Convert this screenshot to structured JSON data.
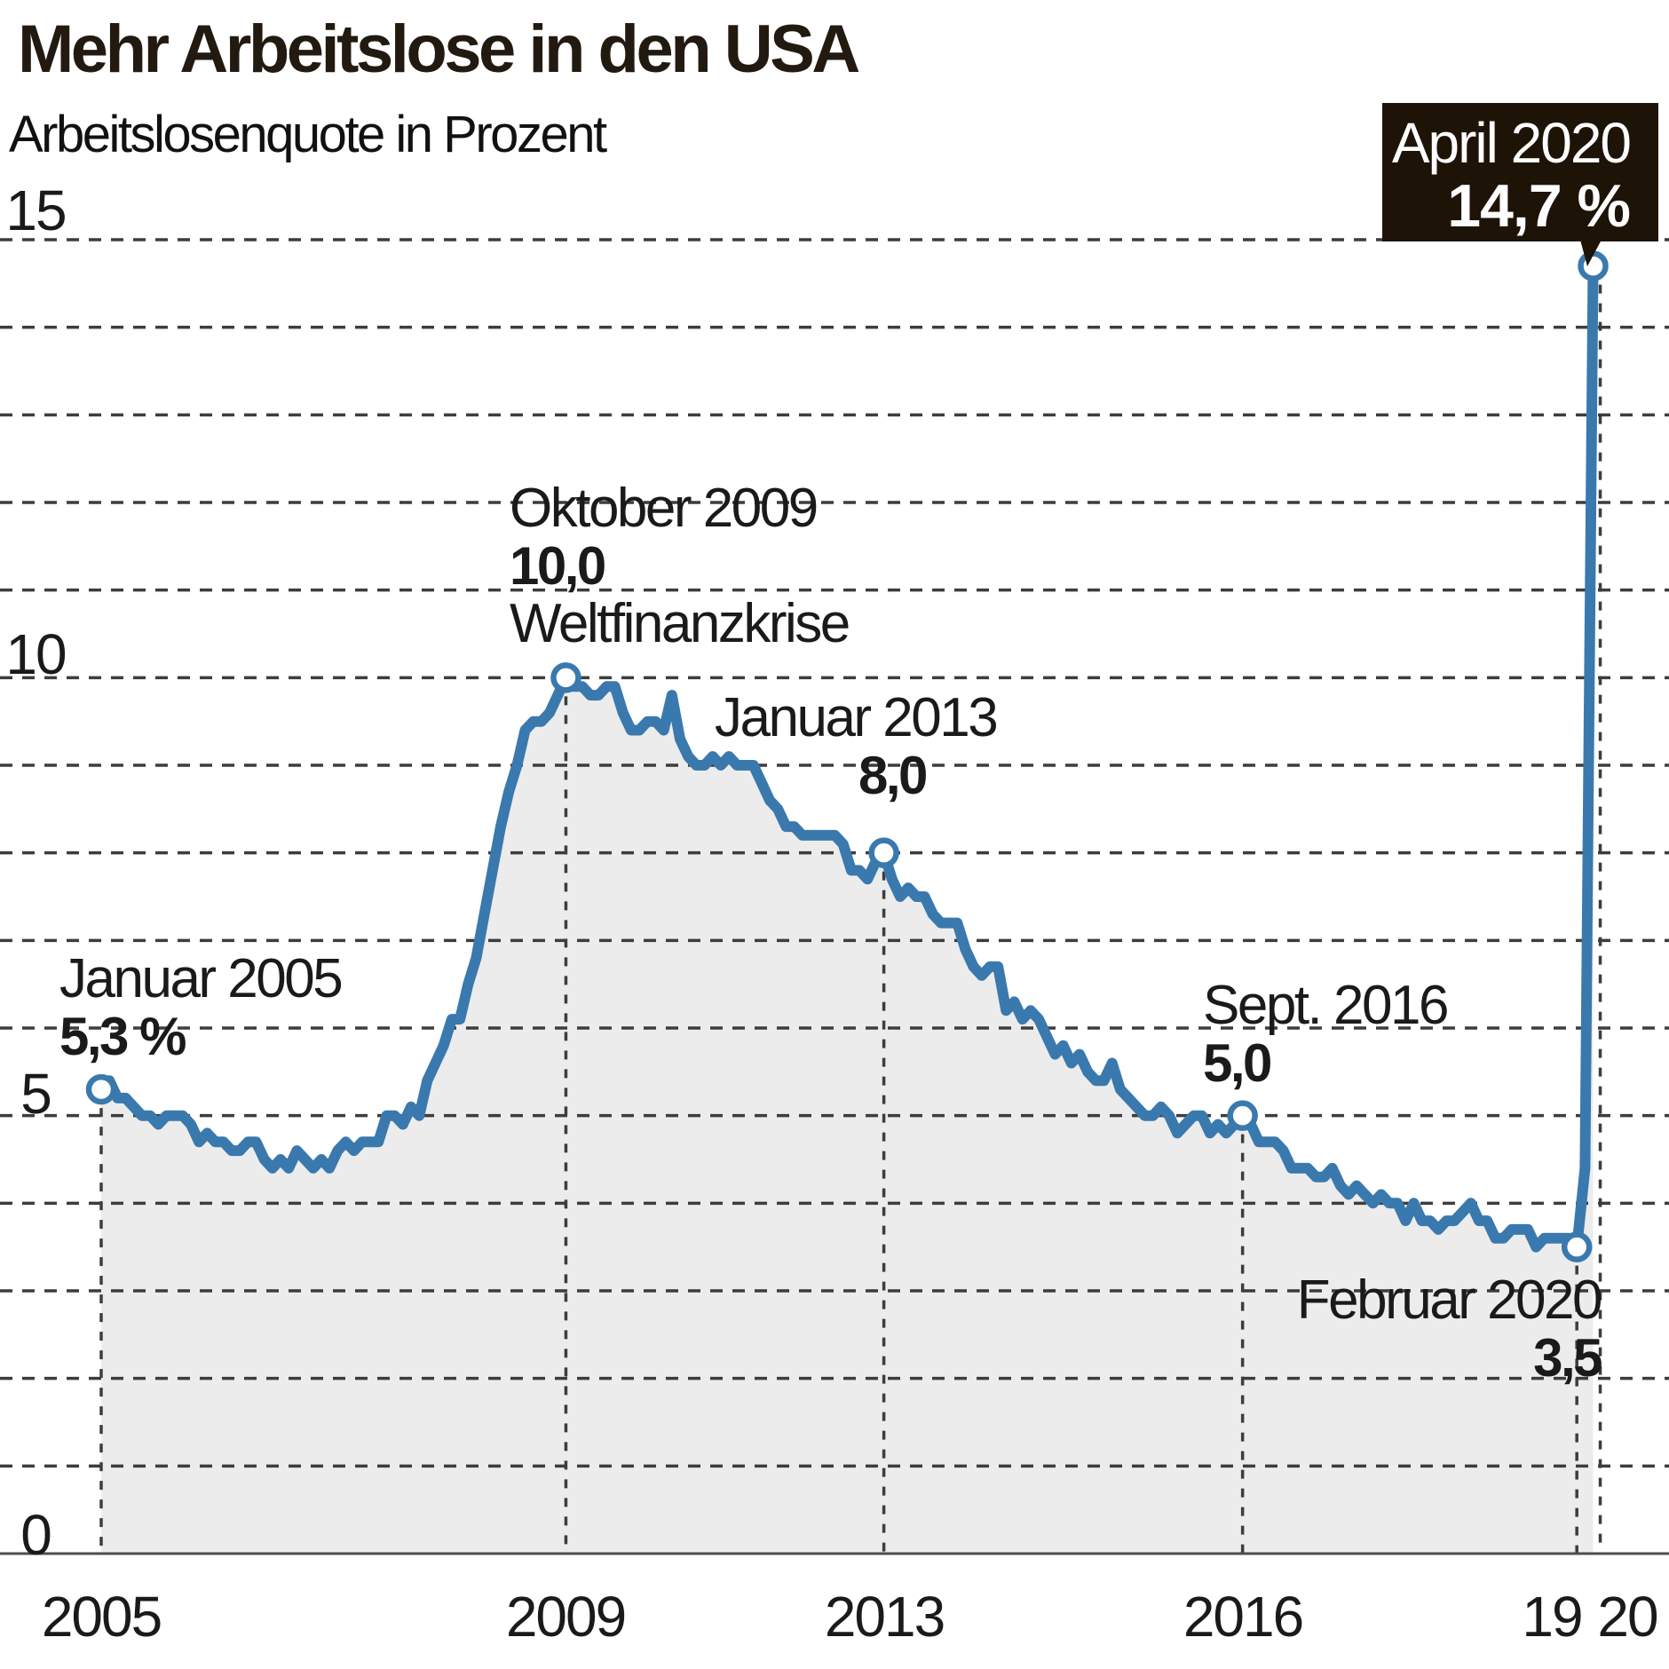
{
  "header": {
    "title": "Mehr Arbeitslose in den USA",
    "subtitle": "Arbeitslosenquote in Prozent"
  },
  "colors": {
    "line_blue": "#3a79ae",
    "area_fill": "#ececec",
    "grid_gray": "#3d3d3d",
    "axis_gray": "#4d4d4d",
    "callout_bg": "#1e1307",
    "callout_text": "#ffffff",
    "text_black": "#1a1a1a"
  },
  "y_axis": {
    "tick_labels": [
      "15",
      "10",
      "5",
      "0"
    ],
    "tick_values": [
      15,
      10,
      5,
      0
    ]
  },
  "x_axis": {
    "tick_labels": [
      "2005",
      "2009",
      "2013",
      "2016",
      "19",
      "20"
    ]
  },
  "annotations": [
    {
      "date": "Januar 2005",
      "value": "5,3 %"
    },
    {
      "date": "Oktober 2009",
      "value": "10,0",
      "note": "Weltfinanzkrise"
    },
    {
      "date": "Januar 2013",
      "value": "8,0"
    },
    {
      "date": "Sept. 2016",
      "value": "5,0"
    },
    {
      "date": "Februar 2020",
      "value": "3,5"
    },
    {
      "date": "April 2020",
      "value": "14,7 %"
    }
  ],
  "chart_data": {
    "type": "area",
    "title": "Mehr Arbeitslose in den USA",
    "subtitle": "Arbeitslosenquote in Prozent",
    "unit": "percent",
    "frequency": "monthly",
    "start": "2005-01",
    "end": "2020-04",
    "ylim": [
      0,
      15
    ],
    "grid": "horizontal dashed every 1 unit, vertical dotted at annotated points",
    "legend_position": "none",
    "values": [
      5.3,
      5.4,
      5.2,
      5.2,
      5.1,
      5.0,
      5.0,
      4.9,
      5.0,
      5.0,
      5.0,
      4.9,
      4.7,
      4.8,
      4.7,
      4.7,
      4.6,
      4.6,
      4.7,
      4.7,
      4.5,
      4.4,
      4.5,
      4.4,
      4.6,
      4.5,
      4.4,
      4.5,
      4.4,
      4.6,
      4.7,
      4.6,
      4.7,
      4.7,
      4.7,
      5.0,
      5.0,
      4.9,
      5.1,
      5.0,
      5.4,
      5.6,
      5.8,
      6.1,
      6.1,
      6.5,
      6.8,
      7.3,
      7.8,
      8.3,
      8.7,
      9.0,
      9.4,
      9.5,
      9.5,
      9.6,
      9.8,
      10.0,
      9.9,
      9.9,
      9.8,
      9.8,
      9.9,
      9.9,
      9.6,
      9.4,
      9.4,
      9.5,
      9.5,
      9.4,
      9.8,
      9.3,
      9.1,
      9.0,
      9.0,
      9.1,
      9.0,
      9.1,
      9.0,
      9.0,
      9.0,
      8.8,
      8.6,
      8.5,
      8.3,
      8.3,
      8.2,
      8.2,
      8.2,
      8.2,
      8.2,
      8.1,
      7.8,
      7.8,
      7.7,
      7.9,
      8.0,
      7.7,
      7.5,
      7.6,
      7.5,
      7.5,
      7.3,
      7.2,
      7.2,
      7.2,
      6.9,
      6.7,
      6.6,
      6.7,
      6.7,
      6.2,
      6.3,
      6.1,
      6.2,
      6.1,
      5.9,
      5.7,
      5.8,
      5.6,
      5.7,
      5.5,
      5.4,
      5.4,
      5.6,
      5.3,
      5.2,
      5.1,
      5.0,
      5.0,
      5.1,
      5.0,
      4.8,
      4.9,
      5.0,
      5.0,
      4.8,
      4.9,
      4.8,
      4.9,
      5.0,
      4.9,
      4.7,
      4.7,
      4.7,
      4.6,
      4.4,
      4.4,
      4.4,
      4.3,
      4.3,
      4.4,
      4.2,
      4.1,
      4.2,
      4.1,
      4.0,
      4.1,
      4.0,
      4.0,
      3.8,
      4.0,
      3.8,
      3.8,
      3.7,
      3.8,
      3.8,
      3.9,
      4.0,
      3.8,
      3.8,
      3.6,
      3.6,
      3.7,
      3.7,
      3.7,
      3.5,
      3.6,
      3.6,
      3.6,
      3.6,
      3.5,
      4.4,
      14.7
    ],
    "marked_points": [
      {
        "label": "Januar 2005",
        "month_index": 0,
        "value": 5.3
      },
      {
        "label": "Oktober 2009",
        "month_index": 57,
        "value": 10.0
      },
      {
        "label": "Januar 2013",
        "month_index": 96,
        "value": 8.0
      },
      {
        "label": "Sept. 2016",
        "month_index": 140,
        "value": 5.0
      },
      {
        "label": "Februar 2020",
        "month_index": 181,
        "value": 3.5
      },
      {
        "label": "April 2020",
        "month_index": 183,
        "value": 14.7
      }
    ]
  }
}
